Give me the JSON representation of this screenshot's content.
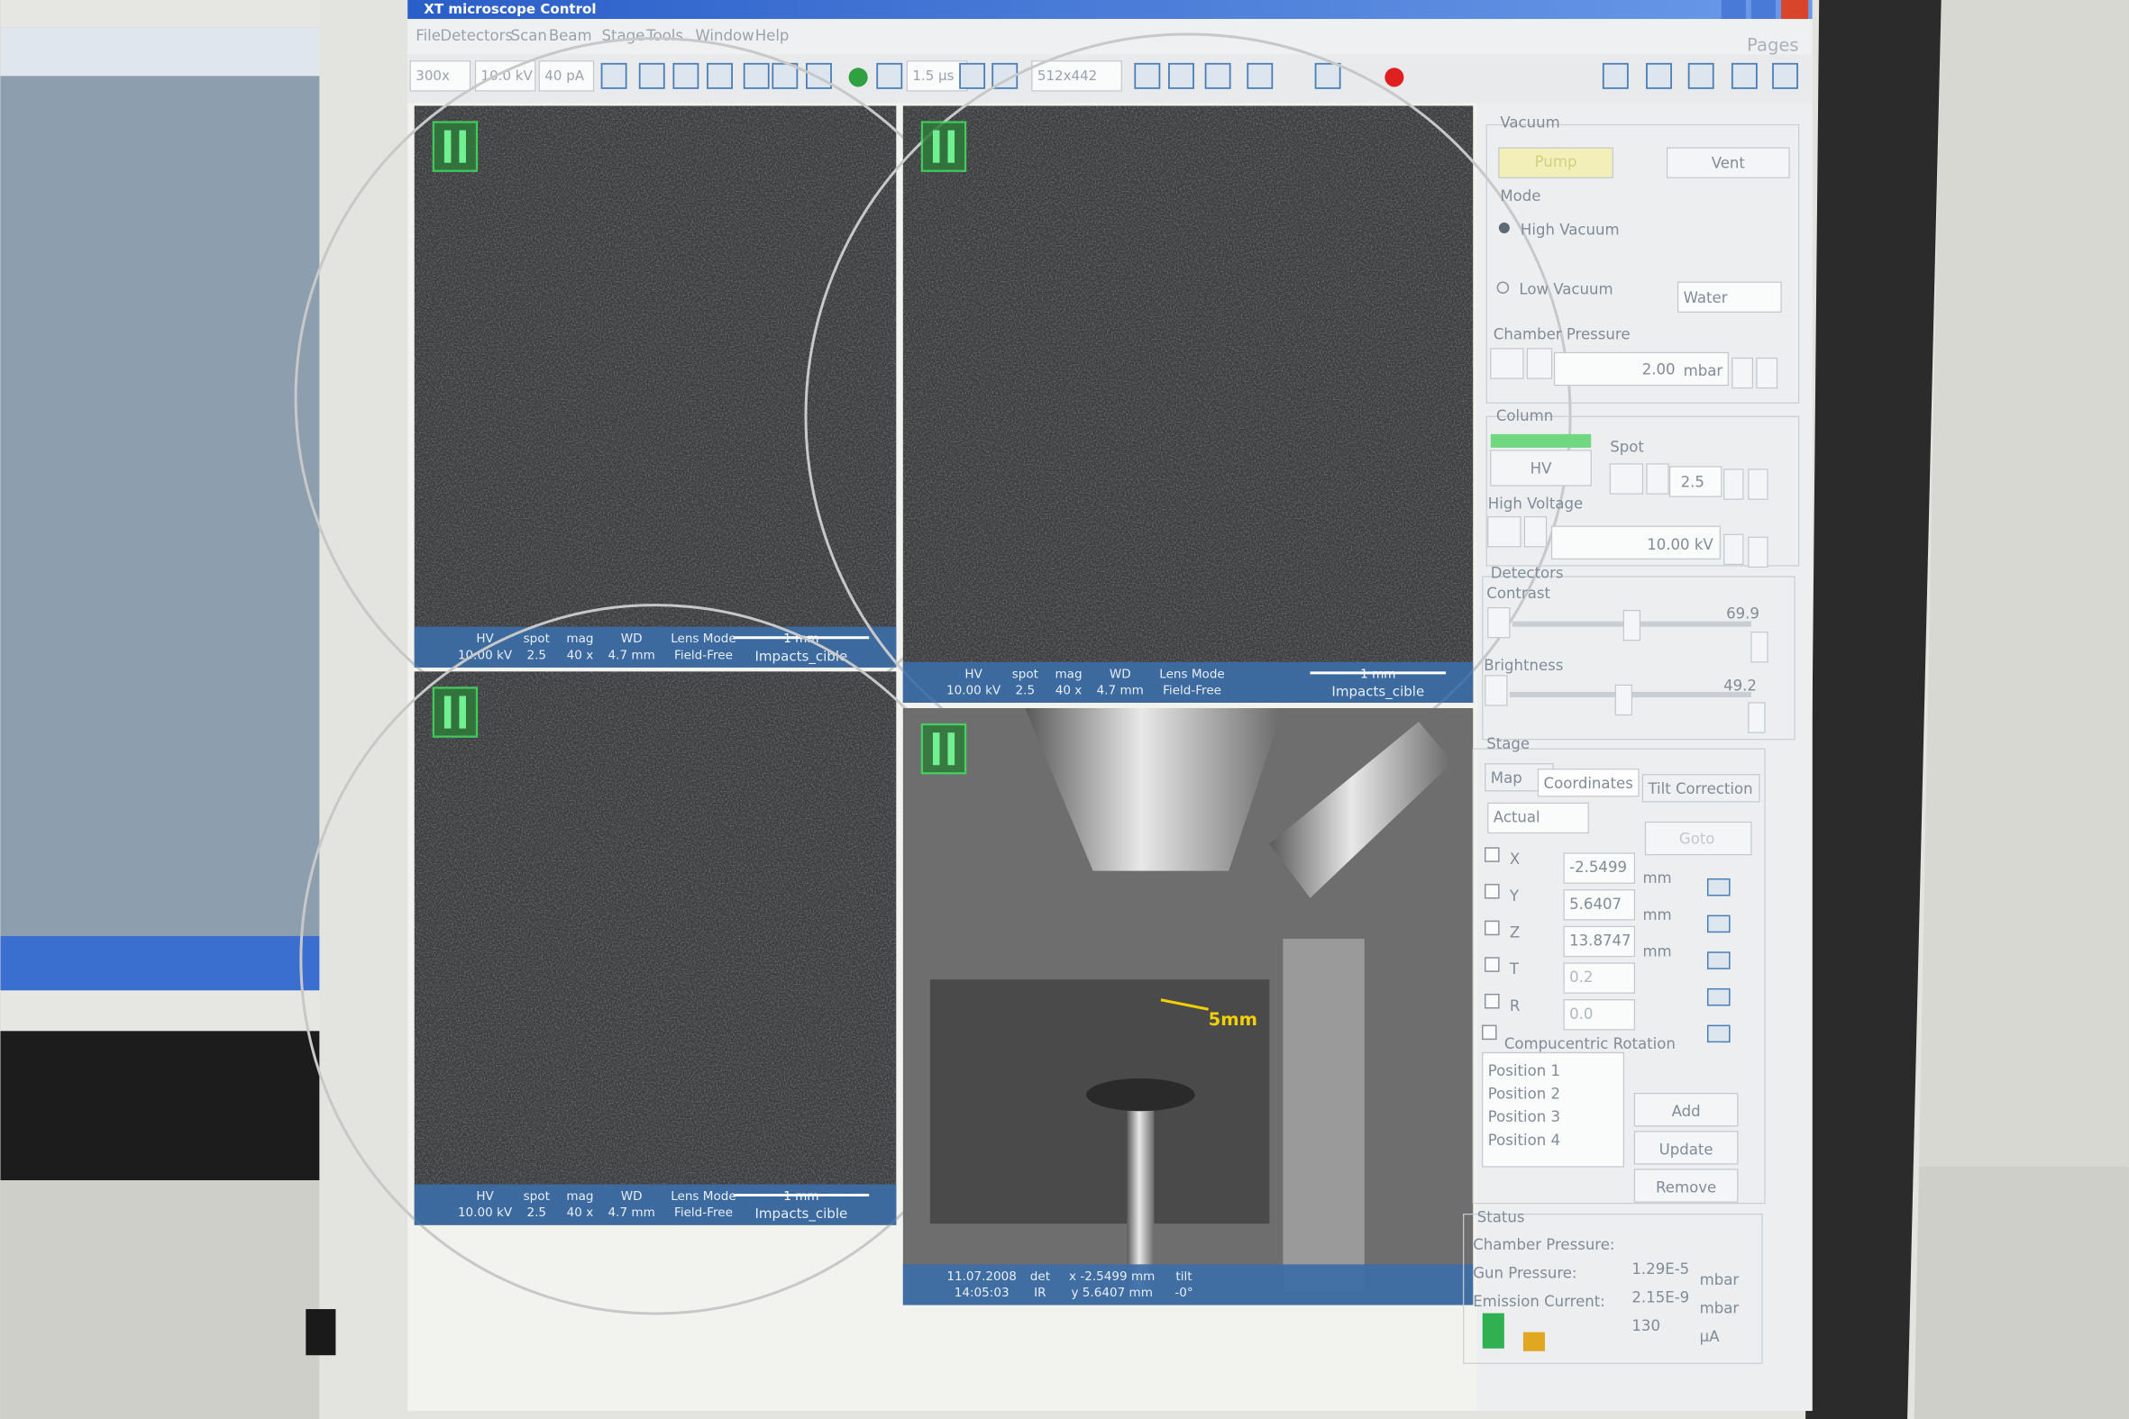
{
  "window": {
    "title": "XT microscope Control",
    "menu": [
      "File",
      "Detectors",
      "Scan",
      "Beam",
      "Stage",
      "Tools",
      "Window",
      "Help"
    ],
    "pages": "Pages"
  },
  "toolbar": {
    "mag": "300x",
    "hv": "10.0 kV",
    "current": "40 pA",
    "dwell": "1.5 µs",
    "resolution": "512x442"
  },
  "quads": [
    {
      "cells": [
        {
          "head": "HV",
          "value": "10.00 kV"
        },
        {
          "head": "spot",
          "value": "2.5"
        },
        {
          "head": "mag",
          "value": "40 x"
        },
        {
          "head": "WD",
          "value": "4.7 mm"
        },
        {
          "head": "Lens Mode",
          "value": "Field-Free"
        }
      ],
      "scale": "1 mm",
      "name": "Impacts_cible"
    },
    {
      "cells": [
        {
          "head": "HV",
          "value": "10.00 kV"
        },
        {
          "head": "spot",
          "value": "2.5"
        },
        {
          "head": "mag",
          "value": "40 x"
        },
        {
          "head": "WD",
          "value": "4.7 mm"
        },
        {
          "head": "Lens Mode",
          "value": "Field-Free"
        }
      ],
      "scale": "1 mm",
      "name": "Impacts_cible"
    },
    {
      "cells": [
        {
          "head": "HV",
          "value": "10.00 kV"
        },
        {
          "head": "spot",
          "value": "2.5"
        },
        {
          "head": "mag",
          "value": "40 x"
        },
        {
          "head": "WD",
          "value": "4.7 mm"
        },
        {
          "head": "Lens Mode",
          "value": "Field-Free"
        }
      ],
      "scale": "1 mm",
      "name": "Impacts_cible"
    },
    {
      "cells": [
        {
          "head": "11.07.2008",
          "value": "14:05:03"
        },
        {
          "head": "det",
          "value": "IR"
        },
        {
          "head": "x -2.5499 mm",
          "value": "y 5.6407 mm"
        },
        {
          "head": "tilt",
          "value": "-0°"
        }
      ],
      "annotation": "5mm"
    }
  ],
  "panel": {
    "vacuum": {
      "title": "Vacuum",
      "pump": "Pump",
      "vent": "Vent"
    },
    "mode": {
      "title": "Mode",
      "high": "High Vacuum",
      "low": "Low Vacuum",
      "gas": "Water"
    },
    "chamber": {
      "title": "Chamber Pressure",
      "value": "2.00",
      "unit": "mbar"
    },
    "column": {
      "title": "Column",
      "hv": "HV",
      "spot_label": "Spot",
      "spot": "2.5",
      "hv_label": "High Voltage",
      "hv_value": "10.00 kV"
    },
    "detectors": {
      "title": "Detectors",
      "contrast_label": "Contrast",
      "contrast": "69.9",
      "brightness_label": "Brightness",
      "brightness": "49.2"
    },
    "stage": {
      "title": "Stage",
      "tabs": [
        "Map",
        "Coordinates",
        "Tilt Correction"
      ],
      "mode": "Actual",
      "goto": "Goto",
      "axes": [
        {
          "name": "X",
          "value": "-2.5499",
          "unit": "mm"
        },
        {
          "name": "Y",
          "value": "5.6407",
          "unit": "mm"
        },
        {
          "name": "Z",
          "value": "13.8747",
          "unit": "mm"
        },
        {
          "name": "T",
          "value": "0.2"
        },
        {
          "name": "R",
          "value": "0.0"
        }
      ],
      "compucentric": "Compucentric Rotation",
      "positions": [
        "Position 1",
        "Position 2",
        "Position 3",
        "Position 4"
      ],
      "buttons": [
        "Add",
        "Update",
        "Remove"
      ]
    },
    "status": {
      "title": "Status",
      "rows": [
        {
          "label": "Chamber Pressure:",
          "value": "1.29E-5",
          "unit": "mbar"
        },
        {
          "label": "Gun Pressure:",
          "value": "2.15E-9",
          "unit": "mbar"
        },
        {
          "label": "Emission Current:",
          "value": "130",
          "unit": "µA"
        }
      ]
    }
  }
}
